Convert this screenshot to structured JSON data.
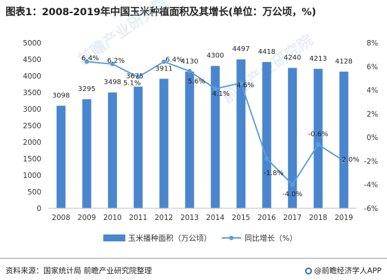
{
  "title": "图表1：2008-2019年中国玉米种植面积及其增长(单位：万公顷，%)",
  "footer": {
    "source": "资料来源：国家统计局 前瞻产业研究院整理",
    "brand": "@前瞻经济学人APP",
    "brand_logo_icon": "qianzhan-logo-icon"
  },
  "watermark": "前瞻产业研究院",
  "colors": {
    "bar": "#4a86cf",
    "line": "#5a9fd8",
    "axis": "#bfbfbf"
  },
  "chart_data": {
    "type": "bar+line",
    "categories": [
      "2008",
      "2009",
      "2010",
      "2011",
      "2012",
      "2013",
      "2014",
      "2015",
      "2016",
      "2017",
      "2018",
      "2019"
    ],
    "series": [
      {
        "name": "玉米播种面积（万公顷）",
        "type": "bar",
        "axis": "left",
        "values": [
          3098,
          3295,
          3498,
          3675,
          3911,
          4130,
          4300,
          4497,
          4418,
          4240,
          4213,
          4128
        ],
        "labels": [
          "3098",
          "3295",
          "3498",
          "3675",
          "3911",
          "4130",
          "4300",
          "4497",
          "4418",
          "4240",
          "4213",
          "4128"
        ]
      },
      {
        "name": "同比增长（%）",
        "type": "line",
        "axis": "right",
        "values": [
          null,
          6.4,
          6.2,
          5.1,
          6.4,
          5.6,
          4.1,
          4.6,
          -1.8,
          -4.0,
          -0.6,
          -2.0
        ],
        "labels": [
          "",
          "6.4%",
          "6.2%",
          "5.1%",
          "6.4%",
          "5.6%",
          "4.1%",
          "4.6%",
          "-1.8%",
          "-4.0%",
          "-0.6%",
          "-2.0%"
        ]
      }
    ],
    "y_left": {
      "ticks": [
        "0",
        "500",
        "1000",
        "1500",
        "2000",
        "2500",
        "3000",
        "3500",
        "4000",
        "4500",
        "5000"
      ],
      "min": 0,
      "max": 5000
    },
    "y_right": {
      "ticks": [
        "-6%",
        "-4%",
        "-2%",
        "0%",
        "2%",
        "4%",
        "6%",
        "8%"
      ],
      "min": -6,
      "max": 8
    },
    "grid": false,
    "legend_position": "bottom"
  }
}
